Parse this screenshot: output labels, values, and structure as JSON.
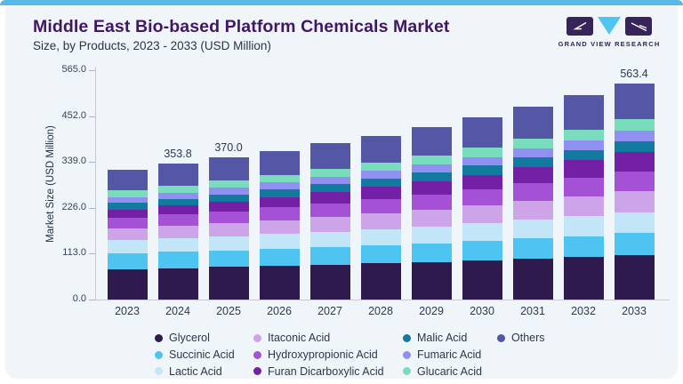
{
  "header": {
    "title": "Middle East Bio-based Platform Chemicals Market",
    "subtitle": "Size, by Products, 2023 - 2033 (USD Million)"
  },
  "logo": {
    "text": "GRAND VIEW RESEARCH",
    "dark_color": "#36245a",
    "cyan_color": "#4ec4f1"
  },
  "chart_data": {
    "type": "bar",
    "stacked": true,
    "title": "Middle East Bio-based Platform Chemicals Market Size, by Products, 2023 - 2033 (USD Million)",
    "xlabel": "",
    "ylabel": "Market Size (USD Million)",
    "ylim": [
      0,
      565
    ],
    "ytick_labels": [
      "0.0",
      "113.0",
      "226.0",
      "339.0",
      "452.0",
      "565.0"
    ],
    "ytick_values": [
      0,
      113,
      226,
      339,
      452,
      565
    ],
    "grid": false,
    "legend_position": "bottom",
    "categories": [
      "2023",
      "2024",
      "2025",
      "2026",
      "2027",
      "2028",
      "2029",
      "2030",
      "2031",
      "2032",
      "2033"
    ],
    "totals": [
      338.9,
      353.8,
      370.0,
      387.5,
      406.6,
      426.9,
      448.9,
      474.3,
      503.4,
      532.0,
      563.4
    ],
    "value_labels": [
      "",
      "353.8",
      "370.0",
      "",
      "",
      "",
      "",
      "",
      "",
      "",
      "563.4"
    ],
    "series": [
      {
        "name": "Glycerol",
        "color": "#2f1a4d",
        "values": [
          79.4,
          81.9,
          84.6,
          87.5,
          90.6,
          94.0,
          97.5,
          101.7,
          106.5,
          111.0,
          116.0
        ]
      },
      {
        "name": "Succinic Acid",
        "color": "#4ec4f1",
        "values": [
          41.0,
          42.1,
          43.2,
          44.5,
          45.8,
          47.2,
          48.7,
          50.5,
          52.6,
          54.5,
          56.5
        ]
      },
      {
        "name": "Lactic Acid",
        "color": "#c2e6f8",
        "values": [
          34.8,
          36.1,
          37.5,
          39.0,
          40.6,
          42.4,
          44.2,
          46.4,
          48.9,
          51.3,
          54.0
        ]
      },
      {
        "name": "Itaconic Acid",
        "color": "#cda4e8",
        "values": [
          30.8,
          32.5,
          34.3,
          36.2,
          38.3,
          40.6,
          43.1,
          45.9,
          49.2,
          52.4,
          56.0
        ]
      },
      {
        "name": "Hydroxypropionic Acid",
        "color": "#a551d6",
        "values": [
          27.2,
          28.8,
          30.6,
          32.5,
          34.6,
          36.8,
          39.3,
          42.1,
          45.3,
          48.5,
          52.0
        ]
      },
      {
        "name": "Furan Dicarboxylic Acid",
        "color": "#7420a6",
        "values": [
          21.6,
          23.4,
          25.4,
          27.6,
          30.0,
          32.6,
          35.4,
          38.5,
          42.2,
          45.9,
          50.0
        ]
      },
      {
        "name": "Malic Acid",
        "color": "#117a9e",
        "values": [
          17.2,
          17.9,
          18.7,
          19.6,
          20.5,
          21.5,
          22.5,
          23.7,
          25.1,
          26.5,
          28.0
        ]
      },
      {
        "name": "Fumaric Acid",
        "color": "#8f90f2",
        "values": [
          15.3,
          16.0,
          16.8,
          17.7,
          18.6,
          19.7,
          20.8,
          22.0,
          23.5,
          24.9,
          26.5
        ]
      },
      {
        "name": "Glucaric Acid",
        "color": "#79dcbd",
        "values": [
          17.2,
          18.1,
          19.0,
          20.0,
          21.1,
          22.2,
          23.5,
          24.9,
          26.6,
          28.2,
          30.0
        ]
      },
      {
        "name": "Others",
        "color": "#5457a5",
        "values": [
          54.4,
          57.0,
          59.9,
          62.9,
          66.5,
          69.9,
          73.9,
          78.6,
          83.5,
          88.8,
          94.4
        ]
      }
    ]
  },
  "legend": {
    "items": [
      {
        "label": "Glycerol",
        "color": "#2f1a4d"
      },
      {
        "label": "Succinic Acid",
        "color": "#4ec4f1"
      },
      {
        "label": "Lactic Acid",
        "color": "#c2e6f8"
      },
      {
        "label": "Itaconic Acid",
        "color": "#cda4e8"
      },
      {
        "label": "Hydroxypropionic Acid",
        "color": "#a551d6"
      },
      {
        "label": "Furan Dicarboxylic Acid",
        "color": "#7420a6"
      },
      {
        "label": "Malic Acid",
        "color": "#117a9e"
      },
      {
        "label": "Fumaric Acid",
        "color": "#8f90f2"
      },
      {
        "label": "Glucaric Acid",
        "color": "#79dcbd"
      },
      {
        "label": "Others",
        "color": "#5457a5"
      }
    ]
  }
}
